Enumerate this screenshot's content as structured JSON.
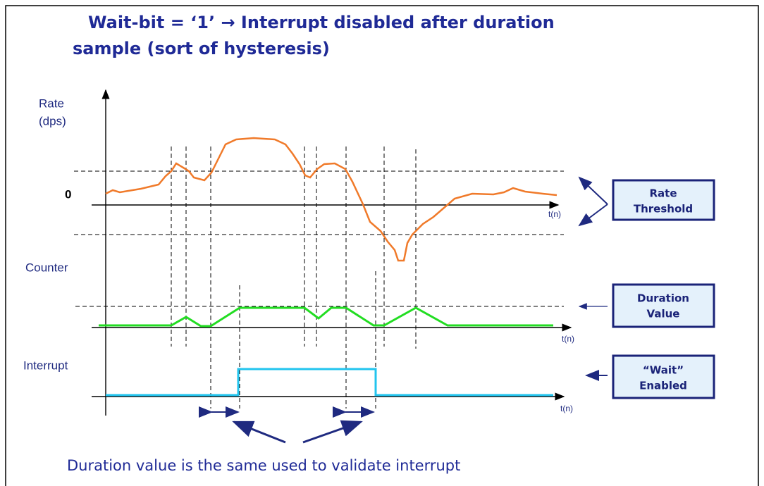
{
  "title": [
    "Wait-bit = ‘1’ → Interrupt disabled after duration",
    "sample (sort of hysteresis)"
  ],
  "rate_axis": {
    "label": [
      "Rate",
      "(dps)"
    ],
    "zero": "0",
    "time": "t(n)"
  },
  "counter_axis": {
    "label": "Counter",
    "time": "t(n)"
  },
  "interrupt_axis": {
    "label": "Interrupt",
    "time": "t(n)"
  },
  "boxes": [
    {
      "lines": [
        "Rate",
        "Threshold"
      ]
    },
    {
      "lines": [
        "Duration",
        "Value"
      ]
    },
    {
      "lines": [
        "“Wait”",
        "Enabled"
      ]
    }
  ],
  "footer": "Duration value is the same used to validate interrupt"
}
